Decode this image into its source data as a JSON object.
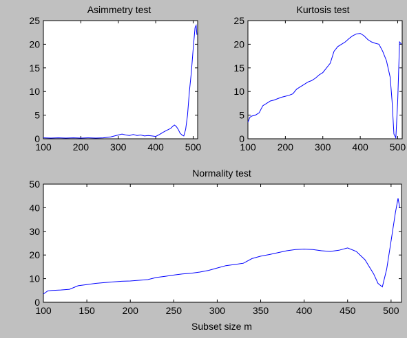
{
  "figure": {
    "background": "#c0c0c0",
    "axes_background": "#ffffff",
    "line_color": "#0000ff"
  },
  "chart_data": [
    {
      "type": "line",
      "title": "Asimmetry test",
      "xlabel": "",
      "ylabel": "",
      "xlim": [
        100,
        512
      ],
      "ylim": [
        0,
        25
      ],
      "xticks": [
        100,
        200,
        300,
        400,
        500
      ],
      "yticks": [
        0,
        5,
        10,
        15,
        20,
        25
      ],
      "grid": false,
      "series": [
        {
          "color": "#0000ff",
          "x": [
            100,
            120,
            140,
            160,
            180,
            200,
            220,
            240,
            260,
            280,
            290,
            300,
            310,
            320,
            330,
            340,
            350,
            360,
            370,
            380,
            390,
            400,
            410,
            420,
            430,
            440,
            445,
            450,
            455,
            460,
            465,
            470,
            475,
            480,
            485,
            490,
            495,
            500,
            505,
            508,
            510
          ],
          "y": [
            0.2,
            0.15,
            0.2,
            0.15,
            0.2,
            0.15,
            0.2,
            0.15,
            0.2,
            0.4,
            0.6,
            0.8,
            1.0,
            0.8,
            0.7,
            0.9,
            0.7,
            0.8,
            0.6,
            0.7,
            0.6,
            0.5,
            0.9,
            1.4,
            1.8,
            2.2,
            2.6,
            2.9,
            2.6,
            2.0,
            1.2,
            0.8,
            0.6,
            2.0,
            5.0,
            10.0,
            14.0,
            19.0,
            23.5,
            24.0,
            22.0
          ]
        }
      ]
    },
    {
      "type": "line",
      "title": "Kurtosis test",
      "xlabel": "",
      "ylabel": "",
      "xlim": [
        100,
        512
      ],
      "ylim": [
        0,
        25
      ],
      "xticks": [
        100,
        200,
        300,
        400,
        500
      ],
      "yticks": [
        0,
        5,
        10,
        15,
        20,
        25
      ],
      "grid": false,
      "series": [
        {
          "color": "#0000ff",
          "x": [
            100,
            105,
            110,
            120,
            130,
            140,
            150,
            160,
            170,
            180,
            190,
            200,
            210,
            220,
            230,
            240,
            250,
            260,
            270,
            280,
            290,
            300,
            310,
            320,
            330,
            340,
            350,
            360,
            370,
            380,
            390,
            400,
            410,
            420,
            430,
            440,
            450,
            460,
            470,
            480,
            485,
            490,
            495,
            500,
            505,
            510
          ],
          "y": [
            3.5,
            4.5,
            4.8,
            5.0,
            5.5,
            7.0,
            7.5,
            8.0,
            8.2,
            8.5,
            8.8,
            9.0,
            9.2,
            9.5,
            10.5,
            11.0,
            11.5,
            12.0,
            12.3,
            12.8,
            13.5,
            14.0,
            15.0,
            16.0,
            18.5,
            19.5,
            20.0,
            20.5,
            21.2,
            21.8,
            22.2,
            22.3,
            21.8,
            21.0,
            20.5,
            20.2,
            20.0,
            18.5,
            16.5,
            13.0,
            8.0,
            1.0,
            0.2,
            8.0,
            20.5,
            20.0
          ]
        }
      ]
    },
    {
      "type": "line",
      "title": "Normality test",
      "xlabel": "Subset size m",
      "ylabel": "",
      "xlim": [
        100,
        512
      ],
      "ylim": [
        0,
        50
      ],
      "xticks": [
        100,
        150,
        200,
        250,
        300,
        350,
        400,
        450,
        500
      ],
      "yticks": [
        0,
        10,
        20,
        30,
        40,
        50
      ],
      "grid": false,
      "series": [
        {
          "color": "#0000ff",
          "x": [
            100,
            105,
            110,
            120,
            130,
            140,
            150,
            160,
            170,
            180,
            190,
            200,
            210,
            220,
            230,
            240,
            250,
            260,
            270,
            280,
            290,
            300,
            310,
            320,
            330,
            340,
            350,
            360,
            370,
            380,
            390,
            400,
            410,
            420,
            430,
            440,
            450,
            460,
            470,
            480,
            485,
            490,
            495,
            500,
            505,
            508,
            510
          ],
          "y": [
            3.5,
            4.8,
            5.0,
            5.2,
            5.5,
            7.0,
            7.5,
            8.0,
            8.3,
            8.6,
            8.9,
            9.0,
            9.3,
            9.6,
            10.5,
            11.0,
            11.5,
            12.0,
            12.3,
            12.8,
            13.5,
            14.5,
            15.5,
            16.0,
            16.5,
            18.5,
            19.5,
            20.2,
            21.0,
            21.8,
            22.3,
            22.5,
            22.3,
            21.8,
            21.5,
            22.0,
            23.0,
            21.5,
            18.0,
            12.0,
            8.0,
            6.5,
            14.0,
            26.0,
            38.0,
            44.0,
            40.0
          ]
        }
      ]
    }
  ]
}
